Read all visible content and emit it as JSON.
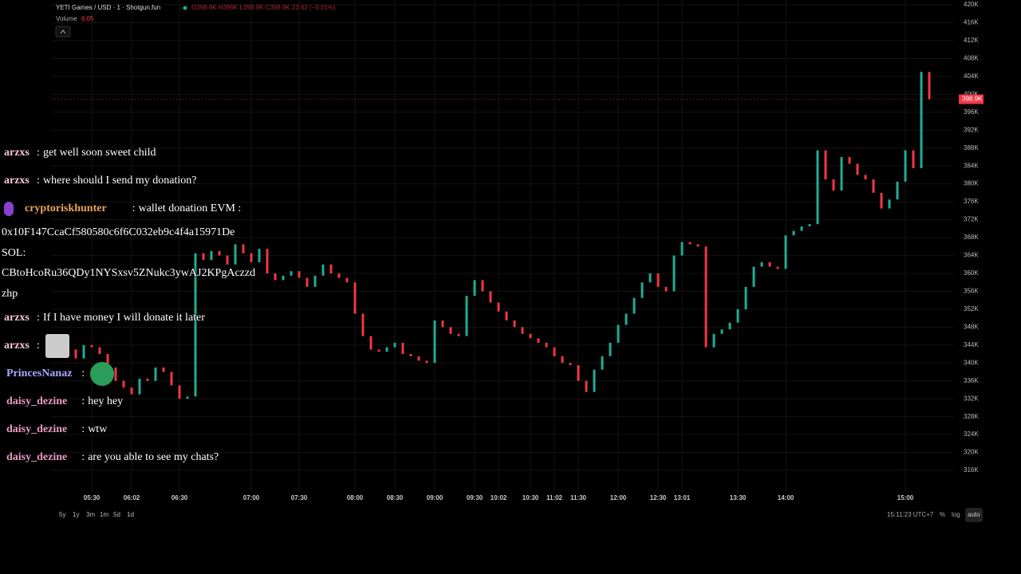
{
  "header": {
    "symbol": "YETI Games / USD · 1 · Shotgun.fun",
    "ohlc": "O398.9K H399K L398.9K C398.9K 22.62 (−0.01%)",
    "volume_label": "Volume",
    "volume_value": "6.05"
  },
  "chart_data": {
    "type": "candlestick",
    "up_color": "#22ab94",
    "down_color": "#f23645",
    "grid": true,
    "x": [
      null,
      null,
      null,
      null,
      "05:30",
      null,
      null,
      null,
      null,
      "06:02",
      null,
      null,
      null,
      null,
      null,
      "06:30",
      null,
      null,
      null,
      null,
      null,
      null,
      null,
      null,
      "07:00",
      null,
      null,
      null,
      null,
      null,
      "07:30",
      null,
      null,
      null,
      null,
      null,
      null,
      "08:00",
      null,
      null,
      null,
      null,
      "08:30",
      null,
      null,
      null,
      null,
      "09:00",
      null,
      null,
      null,
      null,
      "09:30",
      null,
      null,
      "10:02",
      null,
      null,
      null,
      "10:30",
      null,
      null,
      "11:02",
      null,
      null,
      "11:30",
      null,
      null,
      null,
      null,
      "12:00",
      null,
      null,
      null,
      null,
      "12:30",
      null,
      null,
      "13:01",
      null,
      null,
      null,
      null,
      null,
      null,
      "13:30",
      null,
      null,
      null,
      null,
      null,
      "14:00",
      null,
      null,
      null,
      null,
      null,
      null,
      null,
      null,
      null,
      null,
      null,
      null,
      null,
      null,
      "15:00",
      null,
      null,
      null
    ],
    "close": [
      342000,
      343000,
      341000,
      344000,
      343500,
      342000,
      339000,
      336000,
      334500,
      333000,
      336500,
      336000,
      339000,
      338000,
      335000,
      332000,
      332500,
      364500,
      363000,
      365000,
      364000,
      362000,
      366500,
      364500,
      362500,
      365500,
      360000,
      358500,
      359500,
      360500,
      359000,
      357000,
      359500,
      362000,
      360000,
      359000,
      358000,
      351000,
      346000,
      343000,
      342500,
      343500,
      344500,
      342000,
      341500,
      340500,
      340000,
      349500,
      348000,
      346500,
      346000,
      355000,
      358500,
      356000,
      353500,
      351500,
      349500,
      348000,
      346500,
      345500,
      344500,
      343500,
      341500,
      340000,
      339500,
      336000,
      333500,
      338500,
      341500,
      344500,
      348500,
      351000,
      354500,
      358000,
      360000,
      357000,
      356000,
      364000,
      367000,
      366500,
      366000,
      343500,
      346500,
      347500,
      349000,
      352000,
      357000,
      361500,
      362500,
      361500,
      361000,
      368500,
      369500,
      370500,
      371000,
      387500,
      381000,
      378500,
      386000,
      384500,
      382000,
      381000,
      378000,
      374500,
      376500,
      380500,
      387500,
      383500,
      405000,
      398900
    ],
    "ylim": [
      311200,
      421070
    ],
    "yticks": [
      {
        "value": 316000,
        "label": "316K"
      },
      {
        "value": 320000,
        "label": "320K"
      },
      {
        "value": 324000,
        "label": "324K"
      },
      {
        "value": 328000,
        "label": "328K"
      },
      {
        "value": 332000,
        "label": "332K"
      },
      {
        "value": 336000,
        "label": "336K"
      },
      {
        "value": 340000,
        "label": "340K"
      },
      {
        "value": 344000,
        "label": "344K"
      },
      {
        "value": 348000,
        "label": "348K"
      },
      {
        "value": 352000,
        "label": "352K"
      },
      {
        "value": 356000,
        "label": "356K"
      },
      {
        "value": 360000,
        "label": "360K"
      },
      {
        "value": 364000,
        "label": "364K"
      },
      {
        "value": 368000,
        "label": "368K"
      },
      {
        "value": 372000,
        "label": "372K"
      },
      {
        "value": 376000,
        "label": "376K"
      },
      {
        "value": 380000,
        "label": "380K"
      },
      {
        "value": 384000,
        "label": "384K"
      },
      {
        "value": 388000,
        "label": "388K"
      },
      {
        "value": 392000,
        "label": "392K"
      },
      {
        "value": 396000,
        "label": "396K"
      },
      {
        "value": 400000,
        "label": "400K"
      },
      {
        "value": 404000,
        "label": "404K"
      },
      {
        "value": 408000,
        "label": "408K"
      },
      {
        "value": 412000,
        "label": "412K"
      },
      {
        "value": 416000,
        "label": "416K"
      },
      {
        "value": 420000,
        "label": "420K"
      }
    ],
    "last_price": {
      "value": 398900,
      "label": "398.9K"
    }
  },
  "chat": [
    {
      "user": "arzxs",
      "text": "get well soon sweet child"
    },
    {
      "user": "arzxs",
      "text": "where should I send my donation?"
    },
    {
      "user": "cryptoriskhunter",
      "text": "wallet donation EVM :",
      "lines": [
        "0x10F147CcaCf580580c6f6C032eb9c4f4a15971De",
        "SOL:",
        "CBtoHcoRu36QDy1NYSxsv5ZNukc3ywAJ2KPgAczzd",
        "zhp"
      ]
    },
    {
      "user": "arzxs",
      "text": "If I have money I will donate it later"
    },
    {
      "user": "arzxs"
    },
    {
      "user": "PrincesNanaz"
    },
    {
      "user": "daisy_dezine",
      "text": "hey hey"
    },
    {
      "user": "daisy_dezine",
      "text": "wtw"
    },
    {
      "user": "daisy_dezine",
      "text": "are you able to see my chats?"
    }
  ],
  "footer": {
    "ranges": [
      "5y",
      "1y",
      "3m",
      "1m",
      "5d",
      "1d"
    ],
    "clock": "15:11:23 UTC+7",
    "percent": "%",
    "log": "log",
    "auto": "auto"
  }
}
